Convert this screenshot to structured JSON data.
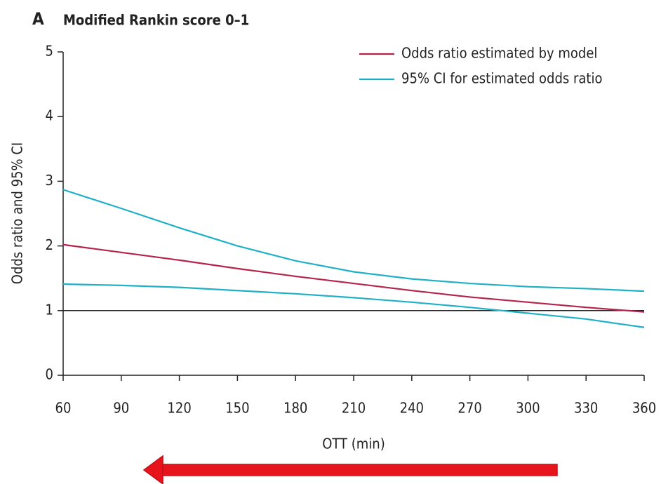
{
  "chart_data": {
    "type": "line",
    "panel": "A",
    "title": "Modified Rankin score 0–1",
    "x_label": "OTT (min)",
    "y_label": "Odds ratio and 95% CI",
    "x": [
      60,
      90,
      120,
      150,
      180,
      210,
      240,
      270,
      300,
      330,
      360
    ],
    "series": [
      {
        "name": "Odds ratio estimated by model",
        "color": "#b5234a",
        "values": [
          2.02,
          1.9,
          1.78,
          1.65,
          1.53,
          1.42,
          1.31,
          1.21,
          1.13,
          1.05,
          0.98
        ]
      },
      {
        "name": "95% CI for estimated odds ratio",
        "color": "#1fb0c8",
        "upper": [
          2.87,
          2.58,
          2.28,
          2.0,
          1.77,
          1.6,
          1.49,
          1.42,
          1.37,
          1.34,
          1.3
        ],
        "lower": [
          1.41,
          1.39,
          1.36,
          1.31,
          1.26,
          1.2,
          1.13,
          1.05,
          0.96,
          0.87,
          0.74
        ]
      }
    ],
    "reference_line": 1,
    "xlim": [
      60,
      360
    ],
    "xticks": [
      60,
      90,
      120,
      150,
      180,
      210,
      240,
      270,
      300,
      330,
      360
    ],
    "ylim": [
      0,
      5
    ],
    "yticks": [
      0,
      1,
      2,
      3,
      4,
      5
    ],
    "legend": "top-right"
  }
}
